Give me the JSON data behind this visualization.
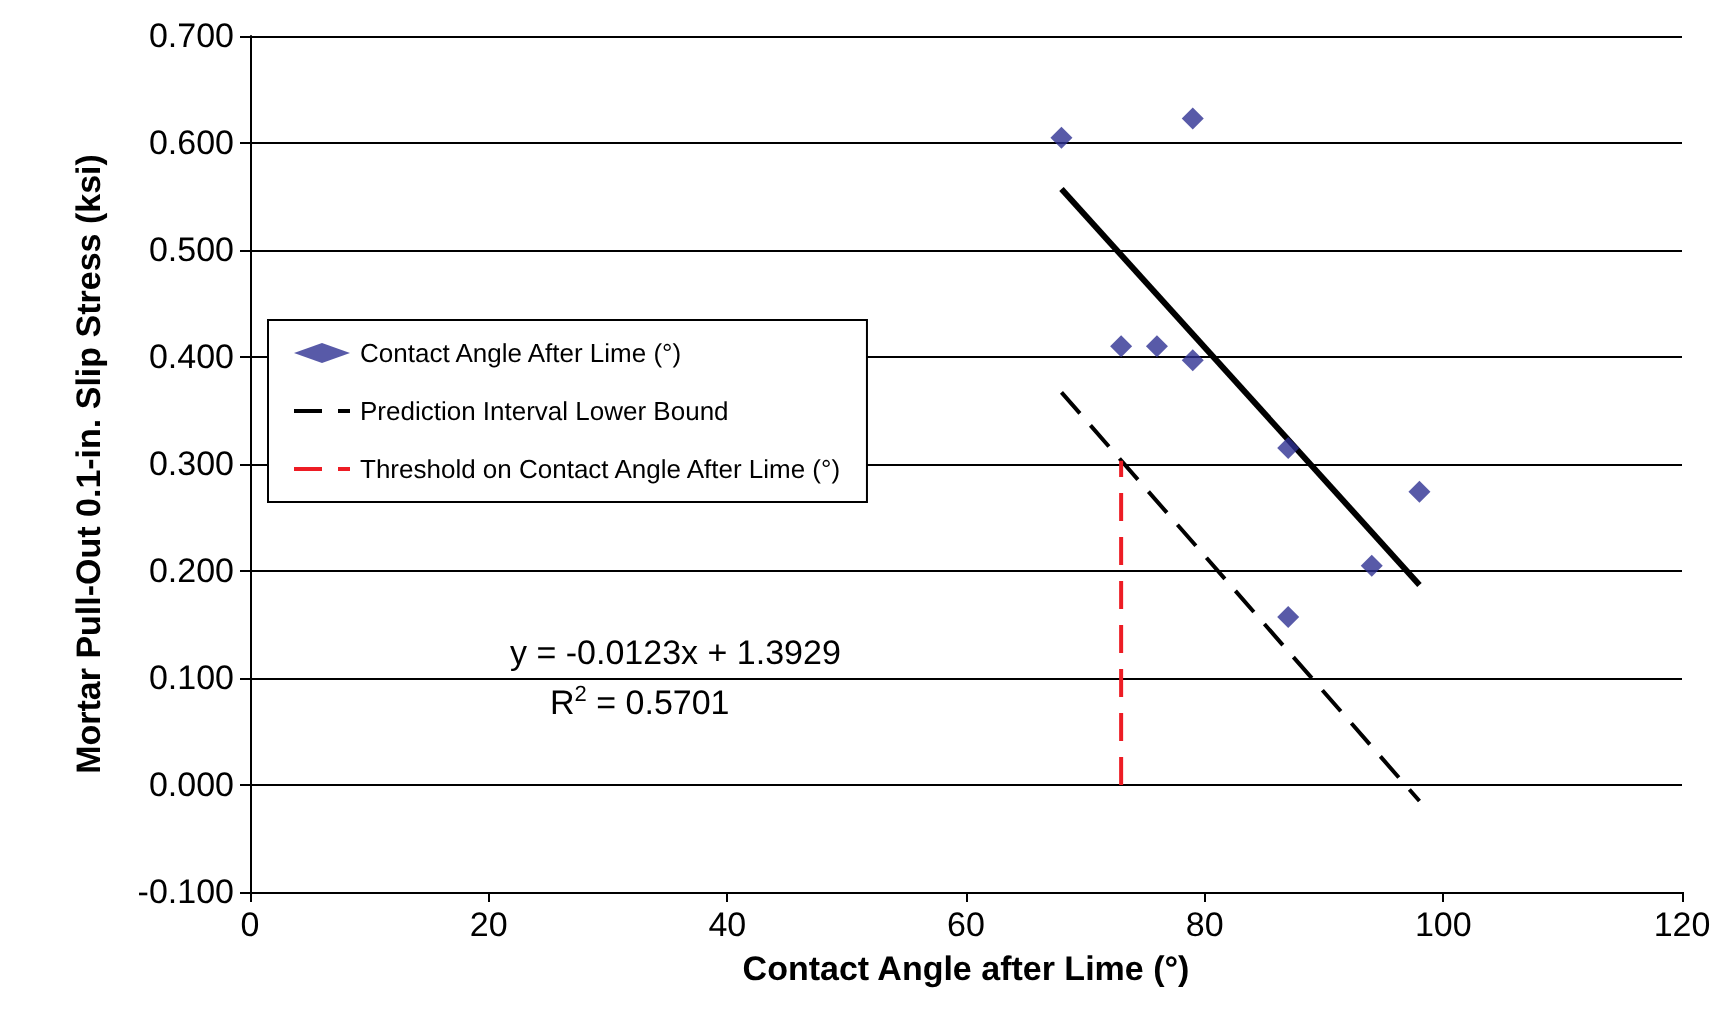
{
  "chart_data": {
    "type": "scatter",
    "xlabel": "Contact Angle after Lime (°)",
    "ylabel": "Mortar Pull-Out 0.1-in. Slip Stress (ksi)",
    "xlim": [
      0,
      120
    ],
    "xticks": [
      0,
      20,
      40,
      60,
      80,
      100,
      120
    ],
    "ylim": [
      -0.1,
      0.7
    ],
    "yticks": [
      {
        "value": -0.1,
        "label": "-0.100"
      },
      {
        "value": 0,
        "label": "0.000"
      },
      {
        "value": 0.1,
        "label": "0.100"
      },
      {
        "value": 0.2,
        "label": "0.200"
      },
      {
        "value": 0.3,
        "label": "0.300"
      },
      {
        "value": 0.4,
        "label": "0.400"
      },
      {
        "value": 0.5,
        "label": "0.500"
      },
      {
        "value": 0.6,
        "label": "0.600"
      },
      {
        "value": 0.7,
        "label": "0.700"
      }
    ],
    "grid": "y",
    "legend": "left",
    "series": [
      {
        "name": "Contact Angle After Lime (°)",
        "marker": "diamond",
        "color": "#2e3192",
        "x": [
          68,
          79,
          73,
          76,
          79,
          87,
          98,
          94,
          87
        ],
        "values": [
          0.605,
          0.623,
          0.41,
          0.41,
          0.397,
          0.315,
          0.274,
          0.205,
          0.157
        ]
      },
      {
        "type": "line",
        "marker": "none",
        "line_style": "solid",
        "color": "#000000",
        "x": [
          68,
          98
        ],
        "values": [
          0.557,
          0.187
        ]
      },
      {
        "name": "Prediction Interval Lower Bound",
        "type": "line",
        "marker": "none",
        "line_style": "dashed",
        "color": "#000000",
        "x": [
          68,
          98
        ],
        "values": [
          0.367,
          -0.015
        ]
      },
      {
        "name": "Threshold on Contact Angle After Lime (°)",
        "type": "line",
        "marker": "none",
        "line_style": "dashed",
        "color": "#ed1c24",
        "x": [
          73,
          73
        ],
        "values": [
          0,
          0.303
        ]
      }
    ],
    "annotations": [
      "y = -0.0123x + 1.3929",
      "R$^{2}$ = 0.5701"
    ]
  }
}
